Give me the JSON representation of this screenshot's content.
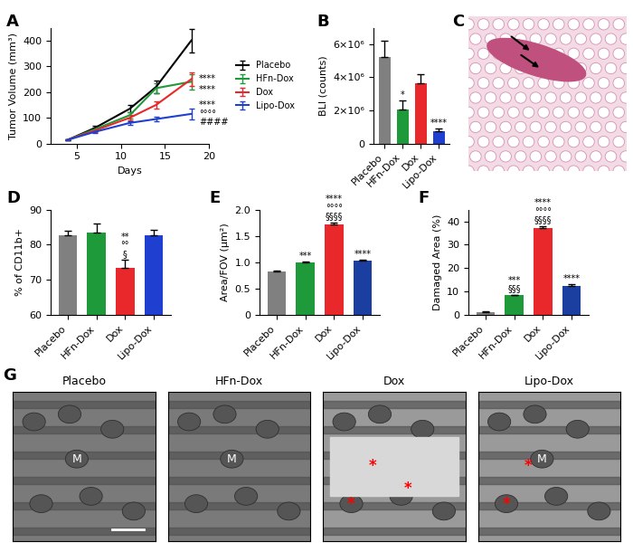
{
  "chart_data": [
    {
      "type": "line",
      "title": "A",
      "xlabel": "Days",
      "ylabel": "Tumor Volume (mm³)",
      "x": [
        4,
        7,
        11,
        14,
        18
      ],
      "xlim": [
        2,
        20
      ],
      "xticks": [
        5,
        10,
        15,
        20
      ],
      "ylim": [
        0,
        450
      ],
      "yticks": [
        0,
        100,
        200,
        300,
        400
      ],
      "legend": "right",
      "series": [
        {
          "name": "Placebo",
          "color": "#000000",
          "values": [
            15,
            60,
            135,
            220,
            400
          ],
          "errors": [
            2,
            8,
            15,
            25,
            45
          ]
        },
        {
          "name": "HFn-Dox",
          "color": "#1f9a3a",
          "values": [
            15,
            55,
            110,
            215,
            240
          ],
          "errors": [
            2,
            7,
            12,
            20,
            30
          ],
          "annotation": "****"
        },
        {
          "name": "Dox",
          "color": "#e8282b",
          "values": [
            15,
            50,
            100,
            150,
            250
          ],
          "errors": [
            2,
            6,
            10,
            15,
            25
          ],
          "annotation": "****"
        },
        {
          "name": "Lipo-Dox",
          "color": "#1f3fd0",
          "values": [
            15,
            45,
            80,
            95,
            115
          ],
          "errors": [
            2,
            5,
            8,
            10,
            20
          ],
          "annotation": "****\n°°°°\n####"
        }
      ]
    },
    {
      "type": "bar",
      "title": "B",
      "ylabel": "BLI (counts)",
      "categories": [
        "Placebo",
        "HFn-Dox",
        "Dox",
        "Lipo-Dox"
      ],
      "values": [
        5200000,
        2050000,
        3650000,
        750000
      ],
      "errors": [
        1000000,
        550000,
        550000,
        150000
      ],
      "colors": [
        "#808080",
        "#1f9a3a",
        "#e8282b",
        "#1f3fd0"
      ],
      "ylim": [
        0,
        7000000
      ],
      "yticks": [
        0,
        {
          "value": 2000000,
          "label": "2×10⁶"
        },
        {
          "value": 4000000,
          "label": "4×10⁶"
        },
        {
          "value": 6000000,
          "label": "6×10⁶"
        }
      ],
      "annotations": [
        null,
        "*",
        null,
        "****"
      ]
    },
    {
      "type": "bar",
      "title": "D",
      "ylabel": "% of CD11b+",
      "categories": [
        "Placebo",
        "HFn-Dox",
        "Dox",
        "Lipo-Dox"
      ],
      "values": [
        82.8,
        83.5,
        73.3,
        82.6
      ],
      "errors": [
        1.3,
        2.5,
        2.3,
        1.7
      ],
      "colors": [
        "#808080",
        "#1f9a3a",
        "#e8282b",
        "#1f3fd0"
      ],
      "ylim": [
        60,
        90
      ],
      "yticks": [
        60,
        70,
        80,
        90
      ],
      "annotations": [
        null,
        null,
        "**\n°°\n§",
        null
      ]
    },
    {
      "type": "bar",
      "title": "E",
      "ylabel": "Area/FOV (µm²)",
      "categories": [
        "Placebo",
        "HFn-Dox",
        "Dox",
        "Lipo-Dox"
      ],
      "values": [
        0.82,
        1.0,
        1.72,
        1.03
      ],
      "errors": [
        0.02,
        0.01,
        0.04,
        0.01
      ],
      "colors": [
        "#808080",
        "#1f9a3a",
        "#e8282b",
        "#1a3fa0"
      ],
      "ylim": [
        0,
        2
      ],
      "yticks": [
        0,
        0.5,
        {
          "value": 1,
          "label": "1.0"
        },
        1.5,
        {
          "value": 2,
          "label": "2.0"
        }
      ],
      "annotations": [
        null,
        "***",
        "****\n°°°°\n§§§§",
        "****"
      ]
    },
    {
      "type": "bar",
      "title": "F",
      "ylabel": "Damaged Area (%)",
      "categories": [
        "Placebo",
        "HFn-Dox",
        "Dox",
        "Lipo-Dox"
      ],
      "values": [
        1.2,
        8.3,
        37,
        12.5
      ],
      "errors": [
        0.3,
        0.3,
        1.0,
        0.6
      ],
      "colors": [
        "#808080",
        "#1f9a3a",
        "#e8282b",
        "#1a3fa0"
      ],
      "ylim": [
        0,
        45
      ],
      "yticks": [
        0,
        10,
        20,
        30,
        40
      ],
      "annotations": [
        null,
        "***\n§§§",
        "****\n°°°°\n§§§§",
        "****"
      ]
    }
  ],
  "images": [
    {
      "title": "C"
    },
    {
      "title": "G",
      "panels": [
        {
          "title": "Placebo",
          "labels": [
            "M"
          ],
          "marks": []
        },
        {
          "title": "HFn-Dox",
          "labels": [
            "M"
          ],
          "marks": []
        },
        {
          "title": "Dox",
          "labels": [],
          "marks": [
            "*",
            "*",
            "*"
          ]
        },
        {
          "title": "Lipo-Dox",
          "labels": [
            "M"
          ],
          "marks": [
            "*",
            "*"
          ]
        }
      ]
    }
  ]
}
